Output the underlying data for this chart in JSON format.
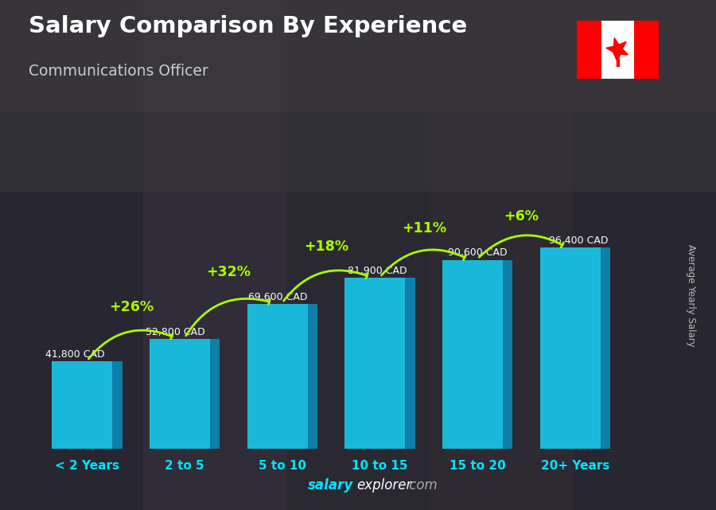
{
  "title": "Salary Comparison By Experience",
  "subtitle": "Communications Officer",
  "categories": [
    "< 2 Years",
    "2 to 5",
    "5 to 10",
    "10 to 15",
    "15 to 20",
    "20+ Years"
  ],
  "values": [
    41800,
    52800,
    69600,
    81900,
    90600,
    96400
  ],
  "labels": [
    "41,800 CAD",
    "52,800 CAD",
    "69,600 CAD",
    "81,900 CAD",
    "90,600 CAD",
    "96,400 CAD"
  ],
  "pct_changes": [
    "+26%",
    "+32%",
    "+18%",
    "+11%",
    "+6%"
  ],
  "bar_color_front": "#1ab8d8",
  "bar_color_side": "#0d7fa8",
  "bar_color_top": "#3dd8f0",
  "bg_color": "#3a3a3a",
  "title_color": "#ffffff",
  "subtitle_color": "#cccccc",
  "label_color": "#ffffff",
  "pct_color": "#aaff00",
  "tick_color": "#00e5ff",
  "watermark_salary": "salary",
  "watermark_explorer": "explorer",
  "watermark_com": ".com",
  "watermark_color_main": "#00e5ff",
  "watermark_color_com": "#aaaaaa",
  "ylabel_text": "Average Yearly Salary",
  "ylabel_color": "#bbbbbb"
}
